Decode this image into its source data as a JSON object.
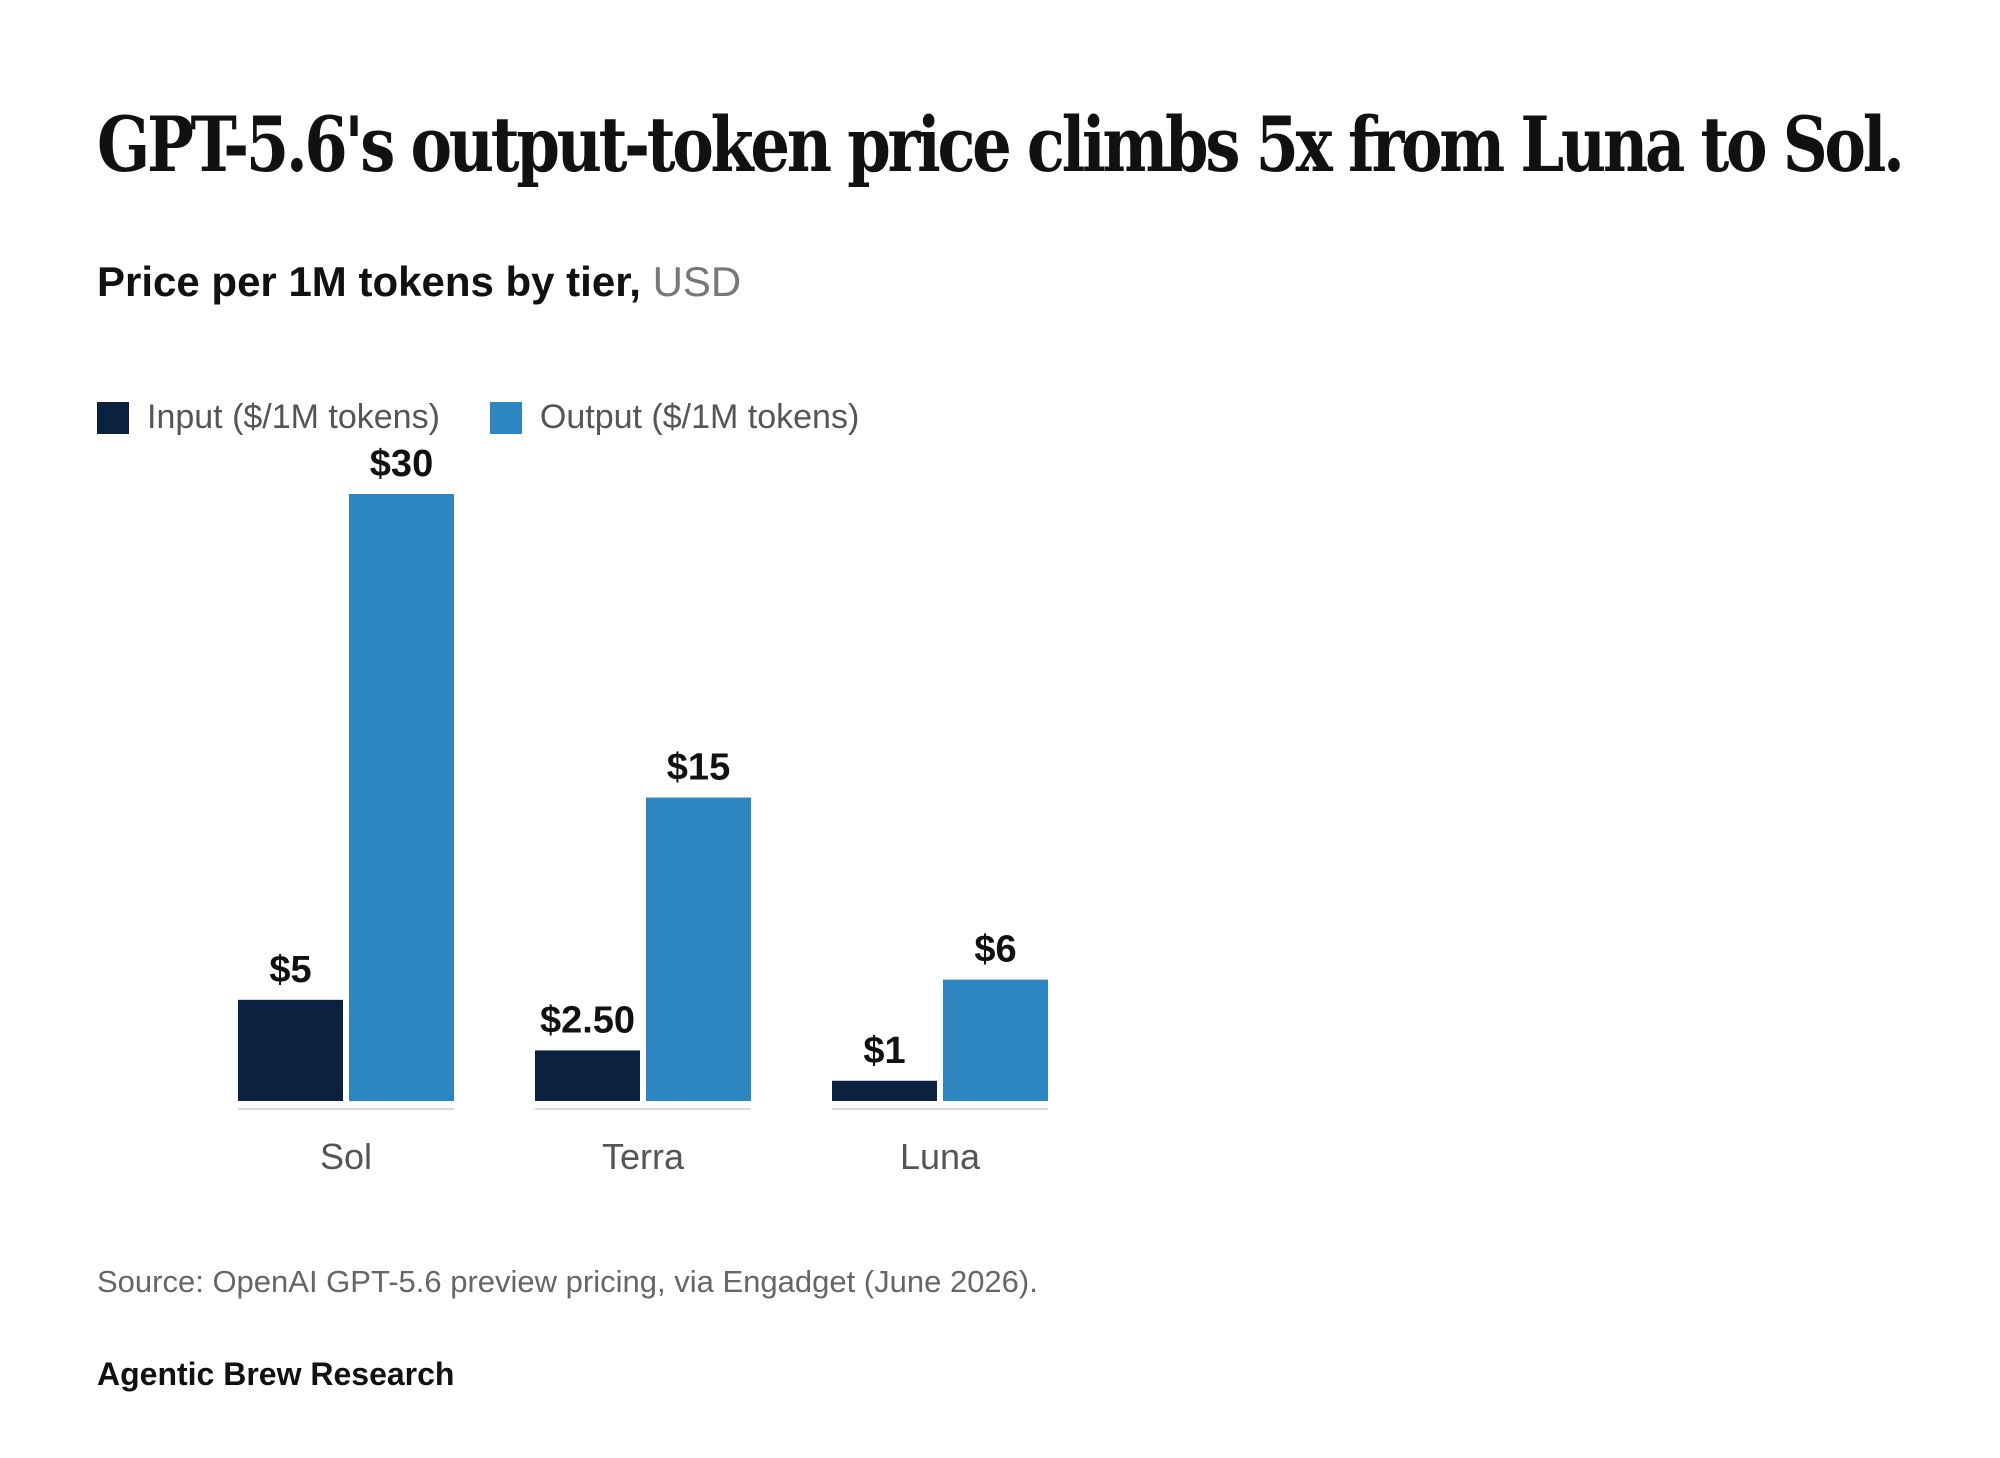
{
  "header": {
    "title": "GPT-5.6's output-token price climbs 5x from Luna to Sol.",
    "subtitle": "Price per 1M tokens by tier,",
    "unit": "USD"
  },
  "colors": {
    "input": "#0a2240",
    "output": "#2e86c1",
    "axis": "#d9d9d9"
  },
  "chart_data": {
    "type": "bar",
    "categories": [
      "Sol",
      "Terra",
      "Luna"
    ],
    "series": [
      {
        "name": "Input ($/1M tokens)",
        "values": [
          5,
          2.5,
          1
        ],
        "labels": [
          "$5",
          "$2.50",
          "$1"
        ]
      },
      {
        "name": "Output ($/1M tokens)",
        "values": [
          30,
          15,
          6
        ],
        "labels": [
          "$30",
          "$15",
          "$6"
        ]
      }
    ],
    "ylim": [
      0,
      30
    ],
    "grid": false,
    "legend": "top-left"
  },
  "footer": {
    "source": "Source: OpenAI GPT-5.6 preview pricing, via Engadget (June 2026).",
    "credit": "Agentic Brew Research"
  }
}
